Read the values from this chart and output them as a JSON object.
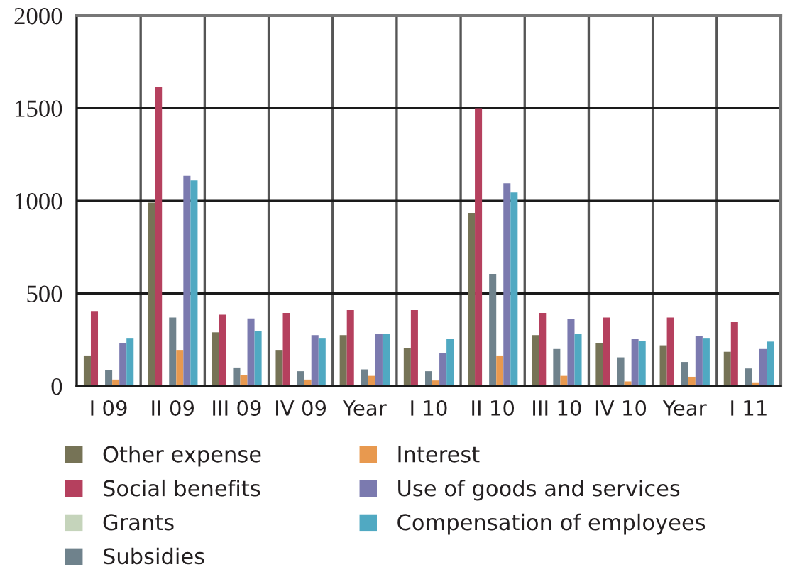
{
  "chart_data": {
    "type": "bar",
    "categories": [
      "I 09",
      "II 09",
      "III 09",
      "IV 09",
      "Year",
      "I 10",
      "II 10",
      "III 10",
      "IV 10",
      "Year",
      "I 11"
    ],
    "series": [
      {
        "name": "Other expense",
        "color": "#767356",
        "values": [
          165,
          990,
          290,
          195,
          275,
          205,
          935,
          275,
          230,
          220,
          185
        ]
      },
      {
        "name": "Social benefits",
        "color": "#b5405e",
        "values": [
          405,
          1615,
          385,
          395,
          410,
          410,
          1500,
          395,
          370,
          370,
          345
        ]
      },
      {
        "name": "Grants",
        "color": "#c5d4bb",
        "values": [
          0,
          0,
          0,
          0,
          0,
          0,
          0,
          0,
          0,
          0,
          0
        ]
      },
      {
        "name": "Subsidies",
        "color": "#6f828c",
        "values": [
          85,
          370,
          100,
          80,
          90,
          80,
          605,
          200,
          155,
          130,
          95
        ]
      },
      {
        "name": "Interest",
        "color": "#e8994f",
        "values": [
          35,
          195,
          60,
          35,
          55,
          30,
          165,
          55,
          25,
          50,
          20
        ]
      },
      {
        "name": "Use of goods and services",
        "color": "#7b7aaf",
        "values": [
          230,
          1135,
          365,
          275,
          280,
          180,
          1095,
          360,
          255,
          270,
          200
        ]
      },
      {
        "name": "Compensation of employees",
        "color": "#50a9c2",
        "values": [
          260,
          1110,
          295,
          260,
          280,
          255,
          1045,
          280,
          245,
          260,
          240
        ]
      }
    ],
    "ylim": [
      0,
      2000
    ],
    "yticks": [
      0,
      500,
      1000,
      1500,
      2000
    ],
    "grid": true,
    "legend": "bottom"
  }
}
